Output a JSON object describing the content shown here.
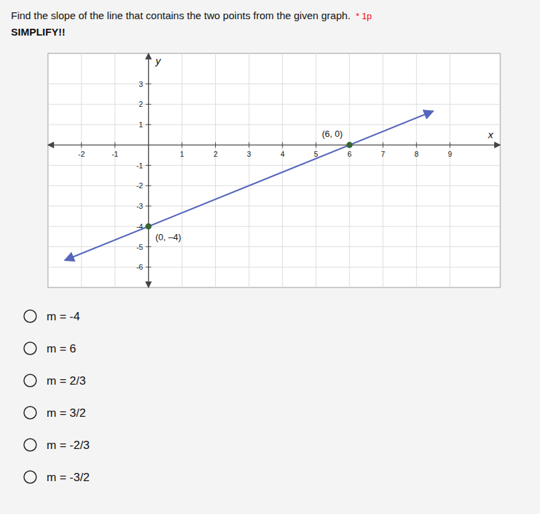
{
  "chart_data": {
    "type": "scatter",
    "title": "Find the slope of the line that contains the two points from the given graph.",
    "title_note": {
      "text": "* 1p",
      "color": "#ff0000"
    },
    "subtitle": "SIMPLIFY!!",
    "x_label": "x",
    "y_label": "y",
    "xlim": [
      -3.0,
      10.5
    ],
    "ylim": [
      -7.0,
      4.5
    ],
    "xticks": [
      -2,
      -1,
      1,
      2,
      3,
      4,
      5,
      6,
      7,
      8,
      9
    ],
    "yticks": [
      -6,
      -5,
      -4,
      -3,
      -2,
      -1,
      1,
      2,
      3
    ],
    "grid": true,
    "series": [
      {
        "type": "line",
        "color": "#5566bb",
        "x": [
          -2.5,
          8.5
        ],
        "values": [
          -5.666666666666667,
          1.6666666666666667
        ]
      },
      {
        "type": "scatter",
        "color": "#336633",
        "x": [
          0,
          6
        ],
        "values": [
          -4,
          0
        ]
      }
    ],
    "annotations": [
      {
        "text": "(6, 0)",
        "x": 6,
        "y": 0
      },
      {
        "text": "(0, –4)",
        "x": 0,
        "y": -4
      }
    ],
    "choices": [
      "m = -4",
      "m = 6",
      "m = 2/3",
      "m = 3/2",
      "m = -2/3",
      "m = -3/2"
    ]
  }
}
